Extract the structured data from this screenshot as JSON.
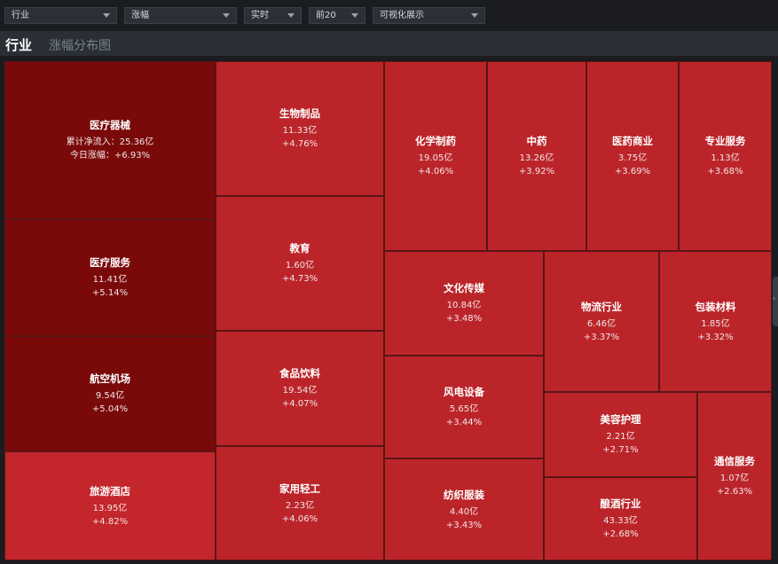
{
  "filters": [
    {
      "value": "行业"
    },
    {
      "value": "涨幅"
    },
    {
      "value": "实时"
    },
    {
      "value": "前20"
    },
    {
      "value": "可视化展示"
    }
  ],
  "tabs": {
    "active": "行业",
    "secondary": "涨幅分布图"
  },
  "colors": {
    "strong_up": "#7a0a0a",
    "up": "#c3262b",
    "background": "#1b1c1f"
  },
  "treemap": {
    "featured": {
      "name": "医疗器械",
      "inflow": "累计净流入：25.36亿",
      "change": "今日涨幅：+6.93%"
    },
    "cells": [
      {
        "name": "医疗服务",
        "inflow": "11.41亿",
        "change": "+5.14%"
      },
      {
        "name": "航空机场",
        "inflow": "9.54亿",
        "change": "+5.04%"
      },
      {
        "name": "旅游酒店",
        "inflow": "13.95亿",
        "change": "+4.82%"
      },
      {
        "name": "生物制品",
        "inflow": "11.33亿",
        "change": "+4.76%"
      },
      {
        "name": "教育",
        "inflow": "1.60亿",
        "change": "+4.73%"
      },
      {
        "name": "食品饮料",
        "inflow": "19.54亿",
        "change": "+4.07%"
      },
      {
        "name": "家用轻工",
        "inflow": "2.23亿",
        "change": "+4.06%"
      },
      {
        "name": "化学制药",
        "inflow": "19.05亿",
        "change": "+4.06%"
      },
      {
        "name": "中药",
        "inflow": "13.26亿",
        "change": "+3.92%"
      },
      {
        "name": "医药商业",
        "inflow": "3.75亿",
        "change": "+3.69%"
      },
      {
        "name": "专业服务",
        "inflow": "1.13亿",
        "change": "+3.68%"
      },
      {
        "name": "文化传媒",
        "inflow": "10.84亿",
        "change": "+3.48%"
      },
      {
        "name": "物流行业",
        "inflow": "6.46亿",
        "change": "+3.37%"
      },
      {
        "name": "包装材料",
        "inflow": "1.85亿",
        "change": "+3.32%"
      },
      {
        "name": "风电设备",
        "inflow": "5.65亿",
        "change": "+3.44%"
      },
      {
        "name": "美容护理",
        "inflow": "2.21亿",
        "change": "+2.71%"
      },
      {
        "name": "纺织服装",
        "inflow": "4.40亿",
        "change": "+3.43%"
      },
      {
        "name": "酿酒行业",
        "inflow": "43.33亿",
        "change": "+2.68%"
      },
      {
        "name": "通信服务",
        "inflow": "1.07亿",
        "change": "+2.63%"
      }
    ]
  }
}
